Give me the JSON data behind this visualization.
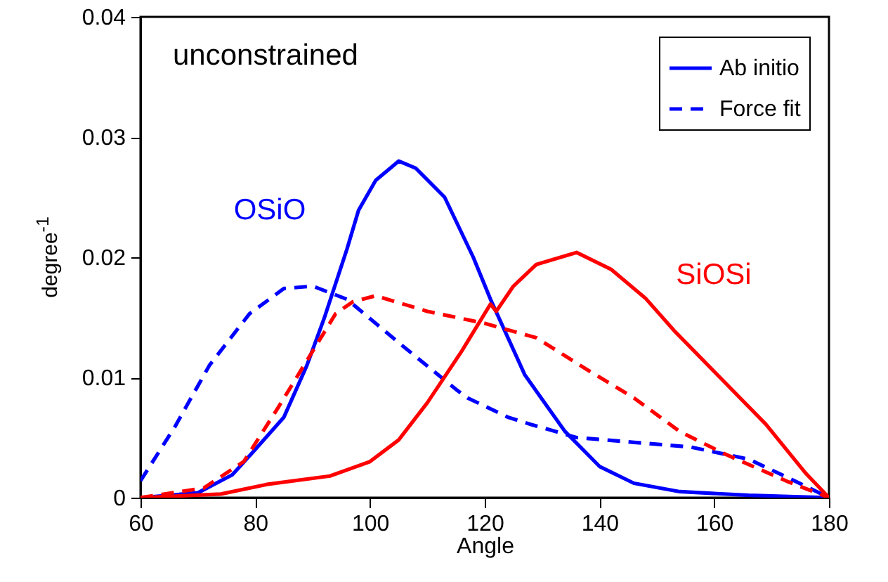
{
  "chart_data": {
    "type": "line",
    "xlabel": "Angle",
    "ylabel": "degree$^{-1}$",
    "xlim": [
      60,
      180
    ],
    "xticks": [
      60,
      80,
      100,
      120,
      140,
      160,
      180
    ],
    "ylim": [
      0,
      0.04
    ],
    "yticks": [
      0,
      0.01,
      0.02,
      0.03,
      0.04
    ],
    "legend": "top right",
    "grid": false,
    "annotations": [
      "unconstrained",
      "OSiO",
      "SiOSi"
    ],
    "series": [
      {
        "name": "Ab initio",
        "color": "#0000ff",
        "line_style": "solid",
        "x": [
          60,
          70,
          76,
          80,
          85,
          89,
          92,
          96,
          98,
          101,
          105,
          108,
          113,
          118,
          121,
          127,
          134,
          140,
          146,
          154,
          166,
          180
        ],
        "values": [
          0,
          0.0004,
          0.0019,
          0.004,
          0.0067,
          0.011,
          0.0149,
          0.0207,
          0.0239,
          0.0264,
          0.028,
          0.0274,
          0.025,
          0.02,
          0.0165,
          0.0102,
          0.0055,
          0.0026,
          0.0012,
          0.0005,
          0.0002,
          0
        ]
      },
      {
        "name": "Force fit",
        "color": "#0000ff",
        "line_style": "dashed",
        "x": [
          60,
          66,
          72,
          79,
          85,
          90,
          96,
          105,
          115,
          117,
          124,
          128,
          136,
          146,
          156,
          166,
          174,
          180
        ],
        "values": [
          0.0014,
          0.0059,
          0.011,
          0.0153,
          0.0174,
          0.0176,
          0.0165,
          0.0129,
          0.009,
          0.0083,
          0.0067,
          0.0061,
          0.005,
          0.0046,
          0.0042,
          0.0032,
          0.0014,
          0
        ]
      },
      {
        "color": "#ff0000",
        "line_style": "solid",
        "x": [
          60,
          74,
          82,
          93,
          100,
          105,
          110,
          116,
          121,
          122,
          125,
          129,
          136,
          142,
          148,
          153,
          161,
          169,
          176,
          180
        ],
        "values": [
          0,
          0.0003,
          0.0011,
          0.0018,
          0.003,
          0.0048,
          0.0079,
          0.0122,
          0.0161,
          0.0155,
          0.0176,
          0.0194,
          0.0204,
          0.019,
          0.0166,
          0.0139,
          0.01,
          0.0061,
          0.002,
          0
        ]
      },
      {
        "color": "#ff0000",
        "line_style": "dashed",
        "x": [
          60,
          71,
          78,
          84,
          89,
          94,
          97,
          101,
          110,
          118,
          120,
          129,
          138,
          146,
          154,
          162,
          173,
          180
        ],
        "values": [
          0,
          0.0008,
          0.003,
          0.0075,
          0.0114,
          0.0153,
          0.0163,
          0.0168,
          0.0155,
          0.0147,
          0.0145,
          0.0133,
          0.0106,
          0.0083,
          0.0055,
          0.0036,
          0.0013,
          0
        ]
      }
    ]
  }
}
